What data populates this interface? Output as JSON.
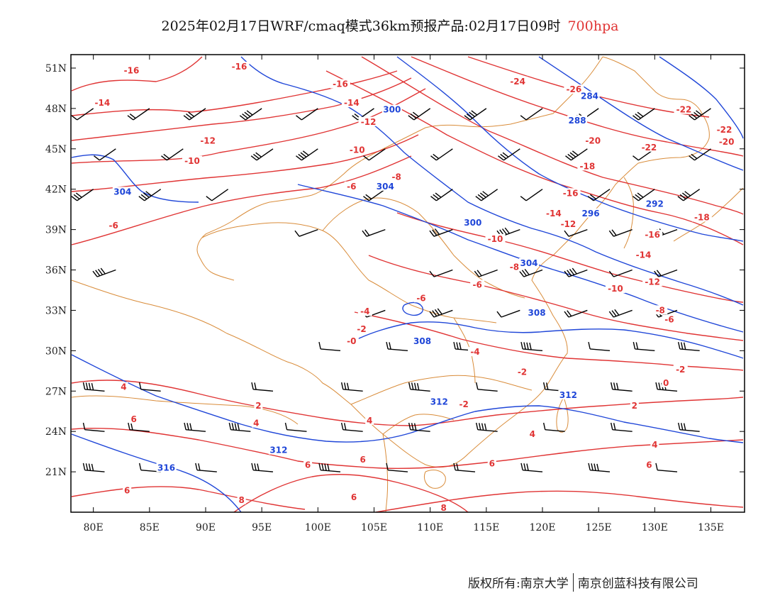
{
  "header": {
    "title": "2025年02月17日WRF/cmaq模式36km预报产品:02月17日09时",
    "level": "700hpa"
  },
  "map": {
    "lon_ticks": [
      "80E",
      "85E",
      "90E",
      "95E",
      "100E",
      "105E",
      "110E",
      "115E",
      "120E",
      "125E",
      "130E",
      "135E"
    ],
    "lat_ticks": [
      "51N",
      "48N",
      "45N",
      "42N",
      "39N",
      "36N",
      "33N",
      "30N",
      "27N",
      "24N",
      "21N"
    ],
    "lon_values": [
      80,
      85,
      90,
      95,
      100,
      105,
      110,
      115,
      120,
      125,
      130,
      135
    ],
    "lat_values": [
      51,
      48,
      45,
      42,
      39,
      36,
      33,
      30,
      27,
      24,
      21
    ],
    "lon_range": [
      78,
      138
    ],
    "lat_range": [
      18,
      52
    ],
    "colors": {
      "temperature": "#e03434",
      "height": "#1f46d8",
      "border": "#d98c3a",
      "wind": "#000000"
    },
    "temperature_labels": [
      {
        "text": "-16",
        "lon": 83.4,
        "lat": 50.7
      },
      {
        "text": "-14",
        "lon": 80.8,
        "lat": 48.3
      },
      {
        "text": "-16",
        "lon": 93.0,
        "lat": 51.0
      },
      {
        "text": "-16",
        "lon": 102.0,
        "lat": 49.7
      },
      {
        "text": "-14",
        "lon": 103.0,
        "lat": 48.3
      },
      {
        "text": "-12",
        "lon": 104.5,
        "lat": 46.9
      },
      {
        "text": "-12",
        "lon": 90.2,
        "lat": 45.5
      },
      {
        "text": "-10",
        "lon": 88.8,
        "lat": 44.0
      },
      {
        "text": "-10",
        "lon": 103.5,
        "lat": 44.8
      },
      {
        "text": "-8",
        "lon": 107.0,
        "lat": 42.8
      },
      {
        "text": "-6",
        "lon": 103.0,
        "lat": 42.1
      },
      {
        "text": "-6",
        "lon": 81.8,
        "lat": 39.2
      },
      {
        "text": "-24",
        "lon": 117.8,
        "lat": 49.9
      },
      {
        "text": "-26",
        "lon": 122.8,
        "lat": 49.3
      },
      {
        "text": "-20",
        "lon": 124.5,
        "lat": 45.5
      },
      {
        "text": "-18",
        "lon": 124.0,
        "lat": 43.6
      },
      {
        "text": "-22",
        "lon": 132.6,
        "lat": 47.8
      },
      {
        "text": "-22",
        "lon": 136.2,
        "lat": 46.3
      },
      {
        "text": "-20",
        "lon": 136.4,
        "lat": 45.4
      },
      {
        "text": "-22",
        "lon": 129.5,
        "lat": 45.0
      },
      {
        "text": "-16",
        "lon": 122.5,
        "lat": 41.6
      },
      {
        "text": "-14",
        "lon": 121.0,
        "lat": 40.1
      },
      {
        "text": "-12",
        "lon": 122.3,
        "lat": 39.3
      },
      {
        "text": "-10",
        "lon": 115.8,
        "lat": 38.2
      },
      {
        "text": "-18",
        "lon": 134.2,
        "lat": 39.8
      },
      {
        "text": "-16",
        "lon": 129.8,
        "lat": 38.5
      },
      {
        "text": "-14",
        "lon": 129.0,
        "lat": 37.0
      },
      {
        "text": "-8",
        "lon": 117.5,
        "lat": 36.1
      },
      {
        "text": "-6",
        "lon": 114.2,
        "lat": 34.8
      },
      {
        "text": "-6",
        "lon": 109.2,
        "lat": 33.8
      },
      {
        "text": "-4",
        "lon": 104.2,
        "lat": 32.8
      },
      {
        "text": "-2",
        "lon": 103.9,
        "lat": 31.5
      },
      {
        "text": "-0",
        "lon": 103.0,
        "lat": 30.6
      },
      {
        "text": "-10",
        "lon": 126.5,
        "lat": 34.5
      },
      {
        "text": "-12",
        "lon": 129.8,
        "lat": 35.0
      },
      {
        "text": "-8",
        "lon": 130.5,
        "lat": 32.9
      },
      {
        "text": "-6",
        "lon": 131.3,
        "lat": 32.2
      },
      {
        "text": "-4",
        "lon": 114.0,
        "lat": 29.8
      },
      {
        "text": "-2",
        "lon": 118.2,
        "lat": 28.3
      },
      {
        "text": "-2",
        "lon": 132.3,
        "lat": 28.5
      },
      {
        "text": "0",
        "lon": 131.0,
        "lat": 27.5
      },
      {
        "text": "4",
        "lon": 82.7,
        "lat": 27.2
      },
      {
        "text": "6",
        "lon": 83.6,
        "lat": 24.8
      },
      {
        "text": "2",
        "lon": 94.7,
        "lat": 25.8
      },
      {
        "text": "4",
        "lon": 94.5,
        "lat": 24.5
      },
      {
        "text": "4",
        "lon": 104.6,
        "lat": 24.7
      },
      {
        "text": "-2",
        "lon": 113.0,
        "lat": 25.9
      },
      {
        "text": "2",
        "lon": 128.2,
        "lat": 25.8
      },
      {
        "text": "4",
        "lon": 119.1,
        "lat": 23.7
      },
      {
        "text": "4",
        "lon": 130.0,
        "lat": 22.9
      },
      {
        "text": "6",
        "lon": 99.1,
        "lat": 21.4
      },
      {
        "text": "6",
        "lon": 104.0,
        "lat": 21.8
      },
      {
        "text": "6",
        "lon": 115.5,
        "lat": 21.5
      },
      {
        "text": "6",
        "lon": 129.5,
        "lat": 21.4
      },
      {
        "text": "6",
        "lon": 83.0,
        "lat": 19.5
      },
      {
        "text": "8",
        "lon": 93.2,
        "lat": 18.8
      },
      {
        "text": "6",
        "lon": 103.2,
        "lat": 19.0
      },
      {
        "text": "8",
        "lon": 111.2,
        "lat": 18.2
      }
    ],
    "height_labels": [
      {
        "text": "300",
        "lon": 106.6,
        "lat": 47.8
      },
      {
        "text": "284",
        "lon": 124.2,
        "lat": 48.8
      },
      {
        "text": "288",
        "lon": 123.1,
        "lat": 47.0
      },
      {
        "text": "304",
        "lon": 82.6,
        "lat": 41.7
      },
      {
        "text": "304",
        "lon": 106.0,
        "lat": 42.1
      },
      {
        "text": "292",
        "lon": 130.0,
        "lat": 40.8
      },
      {
        "text": "296",
        "lon": 124.3,
        "lat": 40.1
      },
      {
        "text": "300",
        "lon": 113.8,
        "lat": 39.4
      },
      {
        "text": "304",
        "lon": 118.8,
        "lat": 36.4
      },
      {
        "text": "308",
        "lon": 119.5,
        "lat": 32.7
      },
      {
        "text": "308",
        "lon": 109.3,
        "lat": 30.6
      },
      {
        "text": "312",
        "lon": 110.8,
        "lat": 26.1
      },
      {
        "text": "312",
        "lon": 122.3,
        "lat": 26.6
      },
      {
        "text": "312",
        "lon": 96.5,
        "lat": 22.5
      },
      {
        "text": "316",
        "lon": 86.5,
        "lat": 21.2
      }
    ],
    "wind_barbs": [
      {
        "lon": 80,
        "lat": 48
      },
      {
        "lon": 85,
        "lat": 48
      },
      {
        "lon": 90,
        "lat": 48
      },
      {
        "lon": 95,
        "lat": 48
      },
      {
        "lon": 100,
        "lat": 48
      },
      {
        "lon": 105,
        "lat": 48
      },
      {
        "lon": 110,
        "lat": 48
      },
      {
        "lon": 115,
        "lat": 48
      },
      {
        "lon": 120,
        "lat": 48
      },
      {
        "lon": 125,
        "lat": 48
      },
      {
        "lon": 130,
        "lat": 48
      },
      {
        "lon": 135,
        "lat": 48
      },
      {
        "lon": 82,
        "lat": 45
      },
      {
        "lon": 88,
        "lat": 45
      },
      {
        "lon": 96,
        "lat": 45
      },
      {
        "lon": 100,
        "lat": 45
      },
      {
        "lon": 106,
        "lat": 45
      },
      {
        "lon": 112,
        "lat": 45
      },
      {
        "lon": 118,
        "lat": 45
      },
      {
        "lon": 124,
        "lat": 45
      },
      {
        "lon": 130,
        "lat": 45
      },
      {
        "lon": 135,
        "lat": 45
      },
      {
        "lon": 80,
        "lat": 42
      },
      {
        "lon": 86,
        "lat": 42
      },
      {
        "lon": 92,
        "lat": 42
      },
      {
        "lon": 106,
        "lat": 42
      },
      {
        "lon": 112,
        "lat": 42
      },
      {
        "lon": 116,
        "lat": 42
      },
      {
        "lon": 120,
        "lat": 42
      },
      {
        "lon": 126,
        "lat": 42
      },
      {
        "lon": 130,
        "lat": 42
      },
      {
        "lon": 134,
        "lat": 42
      },
      {
        "lon": 100,
        "lat": 39
      },
      {
        "lon": 106,
        "lat": 39
      },
      {
        "lon": 112,
        "lat": 39
      },
      {
        "lon": 118,
        "lat": 39
      },
      {
        "lon": 124,
        "lat": 39
      },
      {
        "lon": 128,
        "lat": 39
      },
      {
        "lon": 132,
        "lat": 39
      },
      {
        "lon": 82,
        "lat": 36
      },
      {
        "lon": 112,
        "lat": 36
      },
      {
        "lon": 116,
        "lat": 36
      },
      {
        "lon": 120,
        "lat": 36
      },
      {
        "lon": 124,
        "lat": 36
      },
      {
        "lon": 128,
        "lat": 36
      },
      {
        "lon": 132,
        "lat": 36
      },
      {
        "lon": 106,
        "lat": 33
      },
      {
        "lon": 112,
        "lat": 33
      },
      {
        "lon": 118,
        "lat": 33
      },
      {
        "lon": 124,
        "lat": 33
      },
      {
        "lon": 128,
        "lat": 33
      },
      {
        "lon": 132,
        "lat": 33
      },
      {
        "lon": 102,
        "lat": 30
      },
      {
        "lon": 108,
        "lat": 30
      },
      {
        "lon": 114,
        "lat": 30
      },
      {
        "lon": 120,
        "lat": 30
      },
      {
        "lon": 126,
        "lat": 30
      },
      {
        "lon": 130,
        "lat": 30
      },
      {
        "lon": 134,
        "lat": 30
      },
      {
        "lon": 81,
        "lat": 27
      },
      {
        "lon": 86,
        "lat": 27
      },
      {
        "lon": 96,
        "lat": 27
      },
      {
        "lon": 104,
        "lat": 27
      },
      {
        "lon": 110,
        "lat": 27
      },
      {
        "lon": 116,
        "lat": 27
      },
      {
        "lon": 122,
        "lat": 27
      },
      {
        "lon": 128,
        "lat": 27
      },
      {
        "lon": 132,
        "lat": 27
      },
      {
        "lon": 81,
        "lat": 24
      },
      {
        "lon": 85,
        "lat": 24
      },
      {
        "lon": 90,
        "lat": 24
      },
      {
        "lon": 94,
        "lat": 24
      },
      {
        "lon": 99,
        "lat": 24
      },
      {
        "lon": 104,
        "lat": 24
      },
      {
        "lon": 110,
        "lat": 24
      },
      {
        "lon": 116,
        "lat": 24
      },
      {
        "lon": 122,
        "lat": 24
      },
      {
        "lon": 128,
        "lat": 24
      },
      {
        "lon": 134,
        "lat": 24
      },
      {
        "lon": 81,
        "lat": 21
      },
      {
        "lon": 86,
        "lat": 21
      },
      {
        "lon": 91,
        "lat": 21
      },
      {
        "lon": 96,
        "lat": 21
      },
      {
        "lon": 102,
        "lat": 21
      },
      {
        "lon": 108,
        "lat": 21
      },
      {
        "lon": 114,
        "lat": 21
      },
      {
        "lon": 120,
        "lat": 21
      },
      {
        "lon": 126,
        "lat": 21
      },
      {
        "lon": 132,
        "lat": 21
      }
    ]
  },
  "footer": {
    "copyright": "版权所有:南京大学",
    "company": "南京创蓝科技有限公司"
  }
}
